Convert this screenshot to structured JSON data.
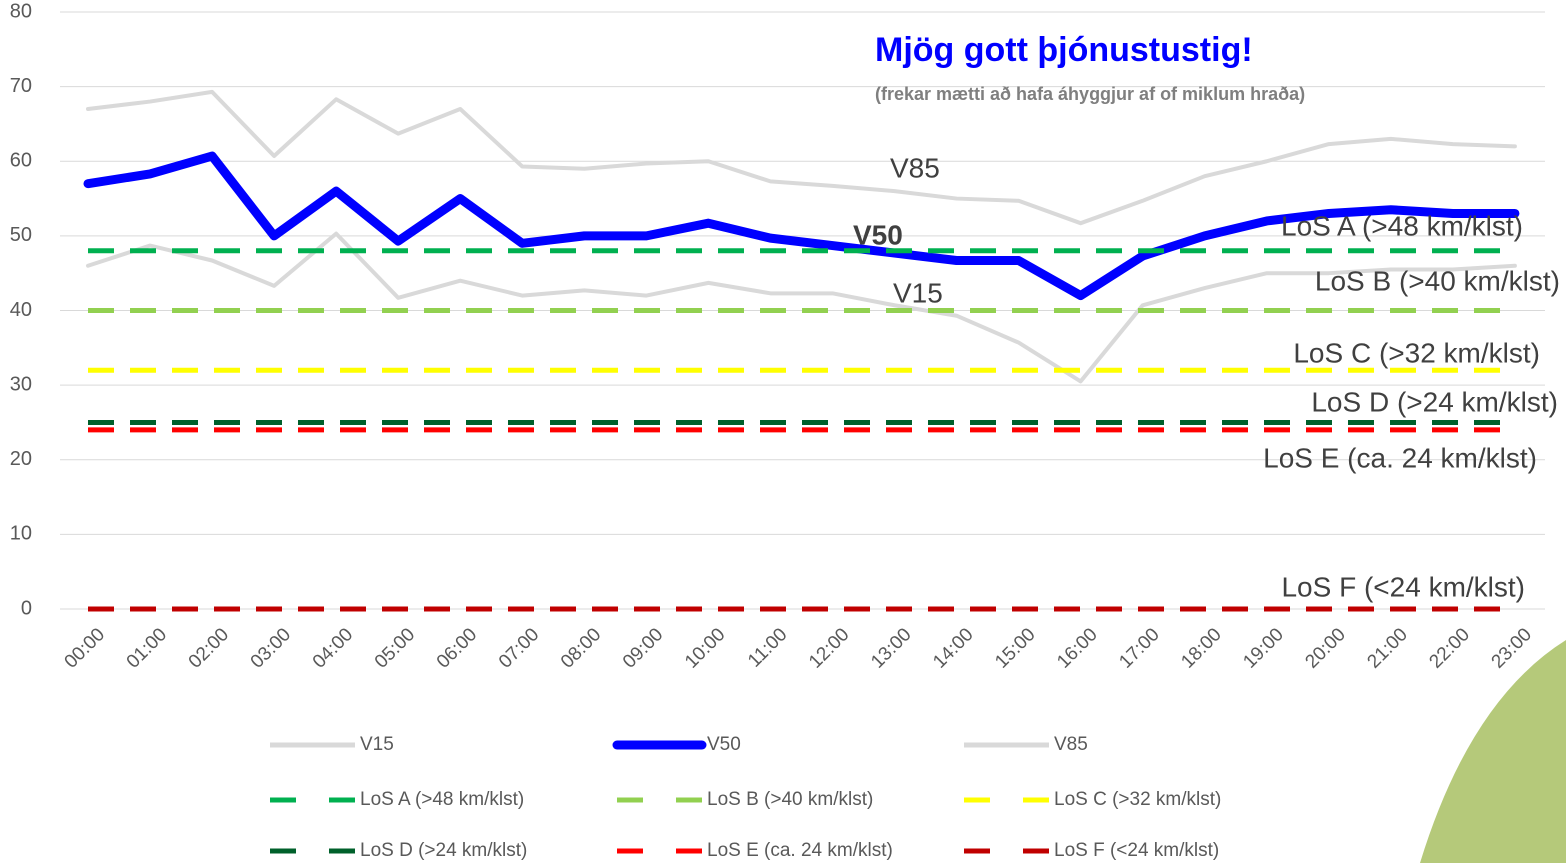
{
  "chart_data": {
    "type": "line",
    "title": "Mjög gott þjónustustig!",
    "subtitle": "(frekar mætti að hafa áhyggjur af of miklum hraða)",
    "categories": [
      "00:00",
      "01:00",
      "02:00",
      "03:00",
      "04:00",
      "05:00",
      "06:00",
      "07:00",
      "08:00",
      "09:00",
      "10:00",
      "11:00",
      "12:00",
      "13:00",
      "14:00",
      "15:00",
      "16:00",
      "17:00",
      "18:00",
      "19:00",
      "20:00",
      "21:00",
      "22:00",
      "23:00"
    ],
    "ylim": [
      0,
      80
    ],
    "yticks": [
      0,
      10,
      20,
      30,
      40,
      50,
      60,
      70,
      80
    ],
    "grid": true,
    "series": [
      {
        "name": "V15",
        "color": "#d9d9d9",
        "style": "solid",
        "values": [
          46,
          48.7,
          46.7,
          43.3,
          50.3,
          41.7,
          44,
          42,
          42.7,
          42,
          43.7,
          42.3,
          42.3,
          40.7,
          39.3,
          35.7,
          30.5,
          40.7,
          43,
          45,
          45,
          45.5,
          45.5,
          46
        ]
      },
      {
        "name": "V50",
        "color": "#0000ff",
        "style": "solid",
        "values": [
          57,
          58.3,
          60.7,
          50,
          56,
          49.3,
          55,
          49,
          50,
          50,
          51.7,
          49.7,
          48.7,
          47.7,
          46.7,
          46.7,
          42,
          47.3,
          50,
          52,
          53,
          53.5,
          53,
          53
        ]
      },
      {
        "name": "V85",
        "color": "#d9d9d9",
        "style": "solid",
        "values": [
          67,
          68,
          69.3,
          60.7,
          68.3,
          63.7,
          67,
          59.3,
          59,
          59.7,
          60,
          57.3,
          56.7,
          56,
          55,
          54.7,
          51.7,
          54.7,
          58,
          60,
          62.3,
          63,
          62.3,
          62
        ]
      },
      {
        "name": "LoS A (>48 km/klst)",
        "color": "#00b050",
        "style": "dashed",
        "values": [
          48,
          48,
          48,
          48,
          48,
          48,
          48,
          48,
          48,
          48,
          48,
          48,
          48,
          48,
          48,
          48,
          48,
          48,
          48,
          48,
          48,
          48,
          48,
          48
        ]
      },
      {
        "name": "LoS B (>40 km/klst)",
        "color": "#92d050",
        "style": "dashed",
        "values": [
          40,
          40,
          40,
          40,
          40,
          40,
          40,
          40,
          40,
          40,
          40,
          40,
          40,
          40,
          40,
          40,
          40,
          40,
          40,
          40,
          40,
          40,
          40,
          40
        ]
      },
      {
        "name": "LoS C  (>32 km/klst)",
        "color": "#ffff00",
        "style": "dashed",
        "values": [
          32,
          32,
          32,
          32,
          32,
          32,
          32,
          32,
          32,
          32,
          32,
          32,
          32,
          32,
          32,
          32,
          32,
          32,
          32,
          32,
          32,
          32,
          32,
          32
        ]
      },
      {
        "name": "LoS D  (>24 km/klst)",
        "color": "#00602b",
        "style": "dashed",
        "values": [
          25,
          25,
          25,
          25,
          25,
          25,
          25,
          25,
          25,
          25,
          25,
          25,
          25,
          25,
          25,
          25,
          25,
          25,
          25,
          25,
          25,
          25,
          25,
          25
        ]
      },
      {
        "name": "LoS E  (ca. 24 km/klst)",
        "color": "#ff0000",
        "style": "dashed",
        "values": [
          24,
          24,
          24,
          24,
          24,
          24,
          24,
          24,
          24,
          24,
          24,
          24,
          24,
          24,
          24,
          24,
          24,
          24,
          24,
          24,
          24,
          24,
          24,
          24
        ]
      },
      {
        "name": "LoS F  (<24 km/klst)",
        "color": "#c00000",
        "style": "dashed",
        "values": [
          0,
          0,
          0,
          0,
          0,
          0,
          0,
          0,
          0,
          0,
          0,
          0,
          0,
          0,
          0,
          0,
          0,
          0,
          0,
          0,
          0,
          0,
          0,
          0
        ]
      }
    ]
  }
}
